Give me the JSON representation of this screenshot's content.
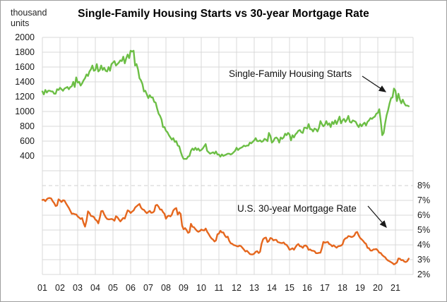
{
  "title": "Single-Family Housing Starts vs 30-year Mortgage Rate",
  "left_axis_unit": {
    "line1": "thousand",
    "line2": "units"
  },
  "annotations": {
    "housing_label": "Single-Family Housing Starts",
    "mortgage_label": "U.S. 30-year Mortgage Rate"
  },
  "colors": {
    "housing_line": "#6CBE45",
    "mortgage_line": "#E5671E",
    "gridline": "#D9D9D9",
    "dashed_gridline": "#CFCFCF",
    "axis_text": "#1a1a1a",
    "annotation_arrow": "#1a1a1a"
  },
  "chart_data": {
    "type": "line",
    "title": "Single-Family Housing Starts vs 30-year Mortgage Rate",
    "frequency": "monthly",
    "x_start": "2001-01",
    "x_end": "2021-10",
    "x_labels": [
      "01",
      "02",
      "03",
      "04",
      "05",
      "06",
      "07",
      "08",
      "09",
      "10",
      "11",
      "12",
      "13",
      "14",
      "15",
      "16",
      "17",
      "18",
      "19",
      "20",
      "21"
    ],
    "grid": true,
    "left_axis": {
      "unit": "thousand units",
      "ticks": [
        2000,
        1800,
        1600,
        1400,
        1200,
        1000,
        800,
        600,
        400
      ],
      "top_value": 2000,
      "step": 200
    },
    "right_axis": {
      "unit": "percent",
      "tick_labels": [
        "8%",
        "7%",
        "6%",
        "5%",
        "4%",
        "3%",
        "2%"
      ],
      "tick_values": [
        8,
        7,
        6,
        5,
        4,
        3,
        2
      ],
      "dashed_line_at": 8
    },
    "series": [
      {
        "name": "Single-Family Housing Starts",
        "axis": "left",
        "color": "#6CBE45",
        "values": [
          1270,
          1230,
          1290,
          1255,
          1280,
          1280,
          1270,
          1270,
          1240,
          1240,
          1300,
          1290,
          1320,
          1300,
          1280,
          1310,
          1320,
          1330,
          1300,
          1330,
          1340,
          1400,
          1330,
          1460,
          1390,
          1400,
          1350,
          1380,
          1420,
          1450,
          1500,
          1480,
          1540,
          1570,
          1620,
          1550,
          1560,
          1640,
          1540,
          1560,
          1620,
          1560,
          1590,
          1550,
          1540,
          1600,
          1550,
          1640,
          1660,
          1680,
          1620,
          1640,
          1660,
          1690,
          1680,
          1740,
          1650,
          1720,
          1770,
          1720,
          1820,
          1810,
          1820,
          1620,
          1640,
          1570,
          1450,
          1420,
          1370,
          1270,
          1280,
          1230,
          1180,
          1220,
          1190,
          1190,
          1130,
          1120,
          1040,
          970,
          940,
          890,
          790,
          790,
          740,
          720,
          680,
          650,
          620,
          640,
          590,
          600,
          540,
          530,
          460,
          400,
          360,
          360,
          360,
          390,
          400,
          470,
          500,
          480,
          510,
          480,
          500,
          470,
          480,
          500,
          530,
          560,
          470,
          450,
          430,
          440,
          450,
          430,
          460,
          420,
          420,
          390,
          420,
          400,
          410,
          420,
          430,
          430,
          420,
          430,
          450,
          470,
          510,
          480,
          500,
          510,
          520,
          540,
          530,
          540,
          540,
          580,
          570,
          590,
          610,
          640,
          600,
          600,
          610,
          590,
          600,
          630,
          620,
          600,
          710,
          670,
          580,
          600,
          640,
          650,
          630,
          580,
          650,
          630,
          650,
          700,
          680,
          710,
          690,
          610,
          680,
          650,
          690,
          710,
          740,
          750,
          720,
          710,
          780,
          780,
          770,
          830,
          760,
          760,
          730,
          770,
          760,
          730,
          780,
          870,
          830,
          800,
          820,
          870,
          820,
          840,
          790,
          860,
          830,
          880,
          830,
          880,
          930,
          840,
          880,
          900,
          860,
          890,
          940,
          860,
          850,
          880,
          870,
          860,
          820,
          790,
          830,
          800,
          830,
          850,
          810,
          860,
          880,
          910,
          900,
          920,
          930,
          970,
          980,
          1030,
          870,
          680,
          710,
          840,
          950,
          1020,
          1110,
          1180,
          1190,
          1310,
          1280,
          1140,
          1240,
          1160,
          1110,
          1160,
          1110,
          1080,
          1080,
          1070
        ]
      },
      {
        "name": "U.S. 30-year Mortgage Rate",
        "axis": "right",
        "color": "#E5671E",
        "values": [
          7.03,
          7.05,
          6.95,
          7.08,
          7.15,
          7.16,
          7.13,
          6.95,
          6.82,
          6.62,
          6.66,
          7.07,
          7.0,
          6.89,
          7.01,
          6.99,
          6.81,
          6.65,
          6.49,
          6.29,
          6.09,
          6.11,
          6.07,
          6.05,
          5.92,
          5.84,
          5.75,
          5.81,
          5.48,
          5.23,
          5.63,
          6.26,
          6.15,
          5.95,
          5.93,
          5.88,
          5.71,
          5.64,
          5.45,
          5.83,
          6.27,
          6.29,
          6.06,
          5.87,
          5.75,
          5.72,
          5.73,
          5.75,
          5.71,
          5.63,
          5.93,
          5.86,
          5.72,
          5.58,
          5.7,
          5.82,
          5.77,
          6.07,
          6.33,
          6.27,
          6.15,
          6.25,
          6.32,
          6.51,
          6.6,
          6.68,
          6.76,
          6.52,
          6.4,
          6.36,
          6.24,
          6.14,
          6.22,
          6.29,
          6.16,
          6.18,
          6.26,
          6.66,
          6.7,
          6.57,
          6.38,
          6.38,
          6.21,
          6.1,
          5.76,
          5.92,
          5.97,
          5.92,
          6.04,
          6.32,
          6.43,
          6.48,
          6.04,
          6.2,
          6.09,
          5.29,
          5.05,
          5.13,
          5.0,
          4.81,
          4.86,
          5.42,
          5.22,
          5.19,
          5.06,
          4.95,
          4.88,
          4.93,
          5.03,
          4.99,
          4.97,
          5.1,
          4.89,
          4.74,
          4.56,
          4.43,
          4.35,
          4.23,
          4.3,
          4.71,
          4.76,
          4.95,
          4.84,
          4.84,
          4.64,
          4.51,
          4.55,
          4.27,
          4.11,
          4.07,
          3.99,
          3.96,
          3.92,
          3.89,
          3.95,
          3.91,
          3.8,
          3.68,
          3.55,
          3.6,
          3.5,
          3.38,
          3.35,
          3.35,
          3.41,
          3.53,
          3.57,
          3.45,
          3.54,
          4.07,
          4.37,
          4.46,
          4.49,
          4.19,
          4.26,
          4.46,
          4.43,
          4.3,
          4.34,
          4.34,
          4.19,
          4.16,
          4.13,
          4.12,
          4.16,
          4.04,
          4.0,
          3.86,
          3.67,
          3.71,
          3.77,
          3.67,
          3.84,
          3.98,
          4.05,
          3.91,
          3.89,
          3.8,
          3.94,
          3.96,
          3.87,
          3.66,
          3.69,
          3.61,
          3.6,
          3.57,
          3.44,
          3.44,
          3.46,
          3.47,
          3.77,
          4.2,
          4.15,
          4.17,
          4.2,
          4.05,
          4.01,
          3.9,
          3.97,
          3.88,
          3.81,
          3.9,
          3.92,
          3.95,
          4.03,
          4.33,
          4.44,
          4.47,
          4.59,
          4.57,
          4.53,
          4.55,
          4.63,
          4.83,
          4.87,
          4.64,
          4.46,
          4.37,
          4.27,
          4.14,
          4.07,
          3.8,
          3.77,
          3.62,
          3.61,
          3.69,
          3.7,
          3.72,
          3.62,
          3.47,
          3.45,
          3.31,
          3.23,
          3.16,
          3.02,
          2.94,
          2.89,
          2.83,
          2.77,
          2.68,
          2.74,
          2.81,
          3.08,
          3.06,
          2.96,
          2.98,
          2.87,
          2.84,
          2.9,
          3.07
        ]
      }
    ]
  }
}
